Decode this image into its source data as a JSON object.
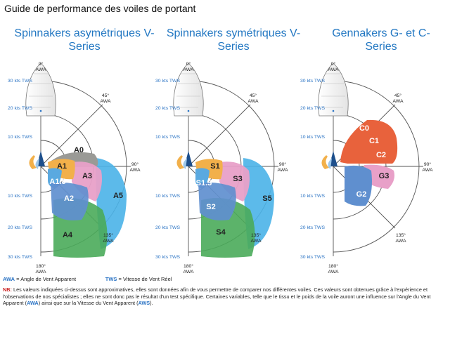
{
  "header": {
    "title": "Guide de performance des voiles de portant"
  },
  "panels": [
    {
      "title_line1": "Spinnakers asymétriques V-",
      "title_line2": "Series",
      "sails": [
        "A0",
        "A1",
        "A1.5",
        "A2",
        "A3",
        "A4",
        "A5"
      ],
      "sail_colors": {
        "A0": "#9a9a96",
        "A1": "#f2b04a",
        "A1.5": "#5aa9e0",
        "A2": "#5f8fcf",
        "A3": "#e8a0c8",
        "A4": "#4aab5a",
        "A5": "#4ab3e8"
      }
    },
    {
      "title_line1": "Spinnakers symétriques V-",
      "title_line2": "Series",
      "sails": [
        "S1",
        "S1.5",
        "S2",
        "S3",
        "S4",
        "S5"
      ],
      "sail_colors": {
        "S1": "#f2b04a",
        "S1.5": "#5aa9e0",
        "S2": "#5f8fcf",
        "S3": "#e8a0c8",
        "S4": "#4aab5a",
        "S5": "#4ab3e8"
      }
    },
    {
      "title_line1": "Gennakers G- et C-",
      "title_line2": "Series",
      "sails": [
        "C0",
        "C1",
        "C2",
        "G3",
        "G2"
      ],
      "sail_colors": {
        "C0": "#e8623c",
        "C1": "#e8623c",
        "C2": "#e8623c",
        "G3": "#e8a0c8",
        "G2": "#5f8fcf"
      }
    }
  ],
  "axes": {
    "angle_labels": {
      "a0": "0°",
      "a45": "45°",
      "a90": "90°",
      "a135": "135°",
      "a180": "180°",
      "awa": "AWA"
    },
    "wind_labels": {
      "w10": "10 kts TWS",
      "w20": "20 kts TWS",
      "w30": "30 kts TWS"
    }
  },
  "legend": {
    "awa_key": "AWA",
    "awa_text": " = Angle de Vent Apparent",
    "tws_key": "TWS",
    "tws_text": " = Vitesse de Vent Réel"
  },
  "note": {
    "nb": "NB:",
    "text1": " Les valeurs indiquées ci-dessus sont approximatives, elles sont données afin de vous permettre de comparer nos différentes voiles. Ces valeurs sont obtenues grâce à l'expérience et l'observations de nos spécialistes ; elles ne sont donc pas le résultat d'un test spécifique. Certaines variables, telle que le tissu et le poids de la voile auront une influence sur l'Angle du Vent Apparent (",
    "awa": "AWA",
    "text2": ") ainsi que sur la Vitesse du Vent Apparent (",
    "aws": "AWS",
    "text3": ")."
  },
  "colors": {
    "title_blue": "#2277c2",
    "axis_blue": "#2a73c4",
    "grid": "#555555"
  }
}
